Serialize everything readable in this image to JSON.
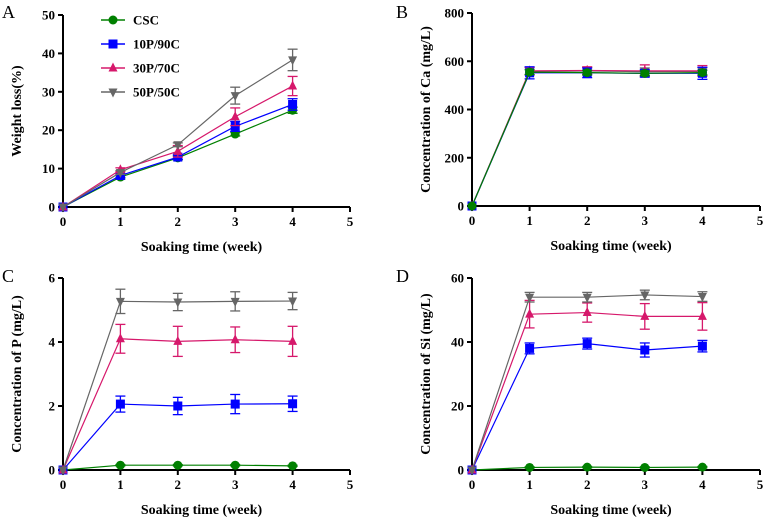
{
  "chart_data": [
    {
      "panel_label": "A",
      "type": "line",
      "xlabel": "Soaking time (week)",
      "ylabel": "Weight loss(%)",
      "xlim": [
        0,
        5
      ],
      "ylim": [
        0,
        50
      ],
      "xticks": [
        "0",
        "1",
        "2",
        "3",
        "4",
        "5"
      ],
      "yticks": [
        "0",
        "10",
        "20",
        "30",
        "40",
        "50"
      ],
      "legend_position": "top-left",
      "x": [
        0,
        1,
        2,
        3,
        4
      ],
      "series": [
        {
          "name": "CSC",
          "marker": "circle",
          "color": "#008000",
          "values": [
            0,
            7.8,
            12.8,
            19.0,
            25.2
          ],
          "errors": [
            0,
            0.5,
            0.5,
            0.5,
            0.8
          ]
        },
        {
          "name": "10P/90C",
          "marker": "square",
          "color": "#0000ff",
          "values": [
            0,
            8.2,
            13.0,
            21.0,
            26.7
          ],
          "errors": [
            0,
            0.5,
            0.6,
            1.3,
            1.5
          ]
        },
        {
          "name": "30P/70C",
          "marker": "triangle-up",
          "color": "#d6186b",
          "values": [
            0,
            9.7,
            14.5,
            23.5,
            31.5
          ],
          "errors": [
            0,
            0.5,
            1.5,
            2.3,
            2.5
          ]
        },
        {
          "name": "50P/50C",
          "marker": "triangle-down",
          "color": "#666666",
          "values": [
            0,
            9.0,
            16.2,
            29.0,
            38.3
          ],
          "errors": [
            0,
            0.5,
            0.5,
            2.2,
            2.8
          ]
        }
      ]
    },
    {
      "panel_label": "B",
      "type": "line",
      "xlabel": "Soaking time (week)",
      "ylabel": "Concentration of Ca (mg/L)",
      "xlim": [
        0,
        5
      ],
      "ylim": [
        0,
        800
      ],
      "xticks": [
        "0",
        "1",
        "2",
        "3",
        "4",
        "5"
      ],
      "yticks": [
        "0",
        "200",
        "400",
        "600",
        "800"
      ],
      "x": [
        0,
        1,
        2,
        3,
        4
      ],
      "series": [
        {
          "name": "50P/50C",
          "marker": "triangle-down",
          "color": "#666666",
          "values": [
            0,
            558,
            560,
            557,
            558
          ],
          "errors": [
            0,
            15,
            15,
            15,
            15
          ]
        },
        {
          "name": "30P/70C",
          "marker": "triangle-up",
          "color": "#d6186b",
          "values": [
            0,
            560,
            562,
            560,
            560
          ],
          "errors": [
            0,
            15,
            15,
            25,
            22
          ]
        },
        {
          "name": "10P/90C",
          "marker": "square",
          "color": "#0000ff",
          "values": [
            0,
            552,
            552,
            550,
            550
          ],
          "errors": [
            0,
            25,
            20,
            15,
            25
          ]
        },
        {
          "name": "CSC",
          "marker": "circle",
          "color": "#008000",
          "values": [
            0,
            555,
            553,
            550,
            553
          ],
          "errors": [
            0,
            10,
            10,
            10,
            10
          ]
        }
      ]
    },
    {
      "panel_label": "C",
      "type": "line",
      "xlabel": "Soaking time (week)",
      "ylabel": "Concentration of P (mg/L)",
      "xlim": [
        0,
        5
      ],
      "ylim": [
        0,
        6
      ],
      "xticks": [
        "0",
        "1",
        "2",
        "3",
        "4",
        "5"
      ],
      "yticks": [
        "0",
        "2",
        "4",
        "6"
      ],
      "x": [
        0,
        1,
        2,
        3,
        4
      ],
      "series": [
        {
          "name": "CSC",
          "marker": "circle",
          "color": "#008000",
          "values": [
            0,
            0.15,
            0.15,
            0.15,
            0.13
          ],
          "errors": [
            0,
            0.02,
            0.02,
            0.02,
            0.02
          ]
        },
        {
          "name": "10P/90C",
          "marker": "square",
          "color": "#0000ff",
          "values": [
            0,
            2.06,
            2.0,
            2.06,
            2.07
          ],
          "errors": [
            0,
            0.25,
            0.27,
            0.3,
            0.24
          ]
        },
        {
          "name": "30P/70C",
          "marker": "triangle-up",
          "color": "#d6186b",
          "values": [
            0,
            4.1,
            4.02,
            4.07,
            4.02
          ],
          "errors": [
            0,
            0.45,
            0.47,
            0.4,
            0.47
          ]
        },
        {
          "name": "50P/50C",
          "marker": "triangle-down",
          "color": "#666666",
          "values": [
            0,
            5.27,
            5.25,
            5.27,
            5.28
          ],
          "errors": [
            0,
            0.38,
            0.27,
            0.3,
            0.27
          ]
        }
      ]
    },
    {
      "panel_label": "D",
      "type": "line",
      "xlabel": "Soaking time (week)",
      "ylabel": "Concentration of Si (mg/L)",
      "xlim": [
        0,
        5
      ],
      "ylim": [
        0,
        60
      ],
      "xticks": [
        "0",
        "1",
        "2",
        "3",
        "4",
        "5"
      ],
      "yticks": [
        "0",
        "20",
        "40",
        "60"
      ],
      "x": [
        0,
        1,
        2,
        3,
        4
      ],
      "series": [
        {
          "name": "CSC",
          "marker": "circle",
          "color": "#008000",
          "values": [
            0,
            0.8,
            0.9,
            0.8,
            0.9
          ],
          "errors": [
            0,
            0.2,
            0.2,
            0.2,
            0.2
          ]
        },
        {
          "name": "10P/90C",
          "marker": "square",
          "color": "#0000ff",
          "values": [
            0,
            38.0,
            39.5,
            37.5,
            38.7
          ],
          "errors": [
            0,
            1.7,
            1.7,
            2.2,
            1.8
          ]
        },
        {
          "name": "30P/70C",
          "marker": "triangle-up",
          "color": "#d6186b",
          "values": [
            0,
            48.7,
            49.2,
            48.0,
            48.0
          ],
          "errors": [
            0,
            4.3,
            3.0,
            4.0,
            4.3
          ]
        },
        {
          "name": "50P/50C",
          "marker": "triangle-down",
          "color": "#666666",
          "values": [
            0,
            54.0,
            54.0,
            54.7,
            54.2
          ],
          "errors": [
            0,
            1.5,
            1.5,
            1.5,
            1.5
          ]
        }
      ]
    }
  ]
}
